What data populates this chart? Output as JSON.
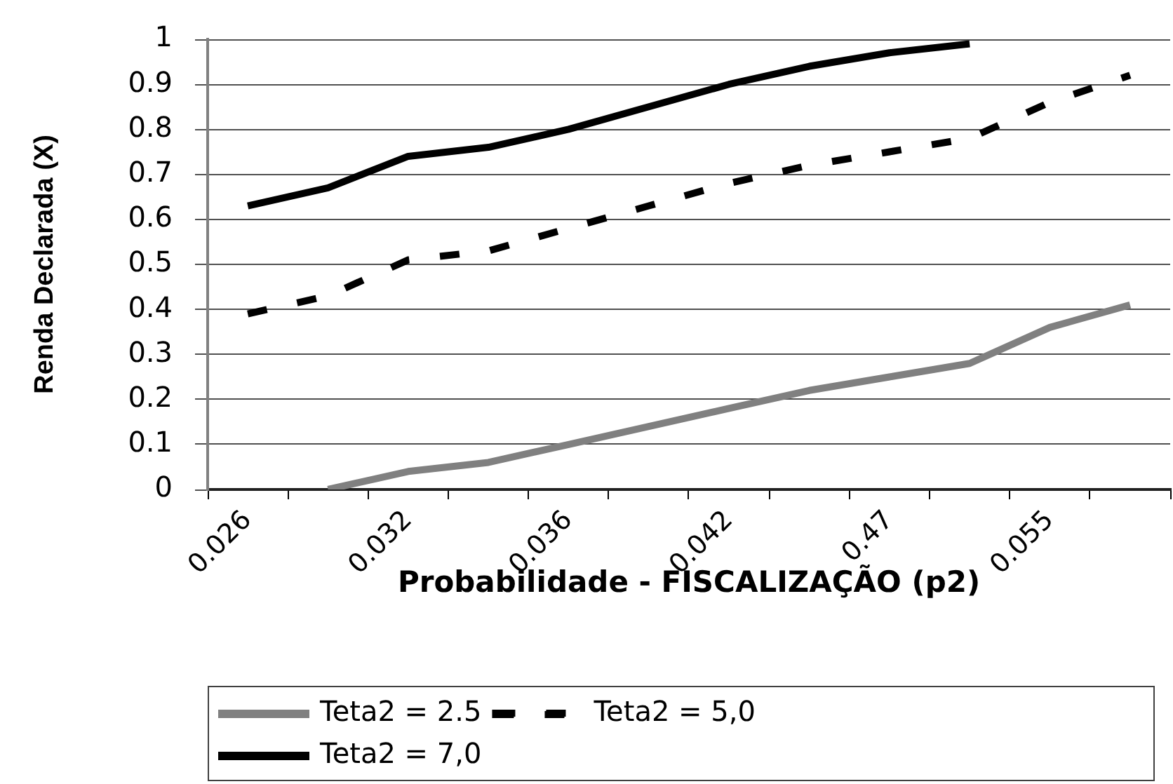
{
  "chart_data": {
    "type": "line",
    "xlabel": "Probabilidade - FISCALIZAÇÃO (p2)",
    "ylabel": "Renda Declarada (X)",
    "categories": [
      "0.026",
      null,
      "0.032",
      null,
      "0.036",
      null,
      "0.042",
      null,
      "0.47",
      null,
      "0.055",
      null
    ],
    "series": [
      {
        "name": "Teta2 = 2.5",
        "color": "#808080",
        "line_style": "solid",
        "values": [
          null,
          0,
          0.04,
          0.06,
          0.1,
          0.14,
          0.18,
          0.22,
          0.25,
          0.28,
          0.36,
          0.41
        ]
      },
      {
        "name": "Teta2 = 5,0",
        "color": "#000000",
        "line_style": "dashed",
        "values": [
          0.39,
          0.43,
          0.51,
          0.53,
          0.58,
          0.63,
          0.68,
          0.72,
          0.75,
          0.78,
          0.86,
          0.92
        ]
      },
      {
        "name": "Teta2 = 7,0",
        "color": "#000000",
        "line_style": "solid",
        "values": [
          0.63,
          0.67,
          0.74,
          0.76,
          0.8,
          0.85,
          0.9,
          0.94,
          0.97,
          0.99,
          null,
          null
        ]
      }
    ],
    "ylim": [
      0,
      1
    ],
    "yticks": [
      0,
      0.1,
      0.2,
      0.3,
      0.4,
      0.5,
      0.6,
      0.7,
      0.8,
      0.9,
      1
    ],
    "grid": "y",
    "legend": "bottom",
    "marker": "none"
  }
}
